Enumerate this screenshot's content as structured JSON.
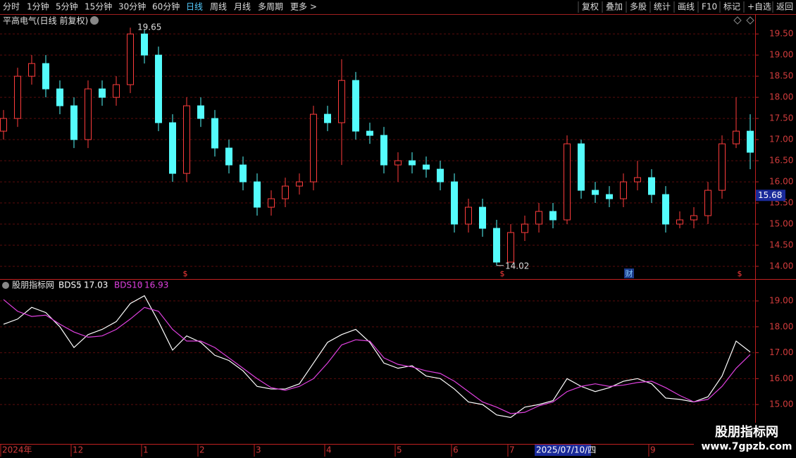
{
  "toolbar": {
    "left": [
      "分时",
      "1分钟",
      "5分钟",
      "15分钟",
      "30分钟",
      "60分钟",
      "日线",
      "周线",
      "月线",
      "多周期",
      "更多 >"
    ],
    "active": "日线",
    "right": [
      "复权",
      "叠加",
      "多股",
      "统计",
      "画线",
      "F10",
      "标记",
      "+自选",
      "返回"
    ]
  },
  "watermark": {
    "title": "股朋指标网",
    "url": "www.7gpzb.com"
  },
  "chart_data": [
    {
      "type": "candlestick",
      "title": "平高电气(日线 前复权)",
      "categories": [
        "2024年",
        null,
        null,
        null,
        null,
        "12",
        null,
        null,
        null,
        null,
        "1",
        null,
        null,
        null,
        "2",
        null,
        null,
        null,
        "3",
        null,
        null,
        null,
        null,
        "4",
        null,
        null,
        null,
        null,
        "5",
        null,
        null,
        null,
        "6",
        null,
        null,
        null,
        "7",
        null,
        null,
        null,
        null,
        null,
        null,
        null,
        null,
        null,
        "9",
        null,
        null,
        null,
        null,
        null,
        null,
        null
      ],
      "open": [
        17.2,
        17.5,
        18.5,
        18.8,
        18.2,
        17.8,
        17.0,
        18.2,
        18.0,
        18.3,
        19.5,
        19.0,
        17.4,
        16.2,
        17.8,
        17.5,
        16.8,
        16.4,
        16.0,
        15.4,
        15.6,
        15.9,
        16.0,
        17.6,
        17.4,
        18.4,
        17.2,
        17.1,
        16.4,
        16.5,
        16.4,
        16.3,
        16.0,
        15.0,
        15.4,
        14.9,
        14.1,
        14.8,
        15.0,
        15.3,
        15.1,
        16.9,
        15.8,
        15.7,
        15.6,
        16.0,
        16.1,
        15.7,
        15.0,
        15.1,
        15.2,
        15.8,
        16.9,
        17.2
      ],
      "close": [
        17.5,
        18.5,
        18.8,
        18.2,
        17.8,
        17.0,
        18.2,
        18.0,
        18.3,
        19.5,
        19.0,
        17.4,
        16.2,
        17.8,
        17.5,
        16.8,
        16.4,
        16.0,
        15.4,
        15.6,
        15.9,
        16.0,
        17.6,
        17.4,
        18.4,
        17.2,
        17.1,
        16.4,
        16.5,
        16.4,
        16.3,
        16.0,
        15.0,
        15.4,
        14.9,
        14.1,
        14.8,
        15.0,
        15.3,
        15.1,
        16.9,
        15.8,
        15.7,
        15.6,
        16.0,
        16.1,
        15.7,
        15.0,
        15.1,
        15.2,
        15.8,
        16.9,
        17.2,
        16.7
      ],
      "high": [
        17.7,
        18.7,
        19.0,
        19.0,
        18.4,
        18.0,
        18.4,
        18.4,
        18.5,
        19.65,
        19.6,
        19.2,
        17.6,
        18.0,
        18.0,
        17.7,
        17.0,
        16.6,
        16.2,
        15.8,
        16.1,
        16.2,
        17.8,
        17.8,
        18.9,
        18.6,
        17.4,
        17.3,
        16.7,
        16.7,
        16.6,
        16.5,
        16.2,
        15.6,
        15.6,
        15.1,
        15.0,
        15.2,
        15.5,
        15.5,
        17.1,
        17.0,
        16.0,
        15.9,
        16.2,
        16.5,
        16.3,
        15.9,
        15.3,
        15.4,
        16.0,
        17.1,
        18.0,
        17.6
      ],
      "low": [
        17.0,
        17.3,
        18.3,
        18.0,
        17.6,
        16.8,
        16.8,
        17.8,
        17.8,
        18.1,
        18.8,
        17.2,
        16.0,
        16.0,
        17.3,
        16.6,
        16.2,
        15.8,
        15.2,
        15.2,
        15.4,
        15.7,
        15.8,
        17.2,
        16.4,
        17.0,
        16.9,
        16.2,
        16.0,
        16.2,
        16.1,
        15.8,
        14.8,
        14.8,
        14.7,
        14.02,
        14.1,
        14.6,
        14.8,
        14.9,
        15.0,
        15.6,
        15.5,
        15.4,
        15.4,
        15.8,
        15.5,
        14.8,
        14.9,
        14.9,
        15.0,
        15.6,
        16.8,
        16.3
      ],
      "up_color": "#ff3c3c",
      "down_color": "#54fcfc",
      "ylim": [
        13.7,
        19.97
      ],
      "yticks": [
        {
          "value": 14,
          "label": "14.00"
        },
        {
          "value": 14.5,
          "label": "14.50"
        },
        {
          "value": 15,
          "label": "15.00"
        },
        {
          "value": 15.5,
          "label": "15.50"
        },
        {
          "value": 16,
          "label": "16.00"
        },
        {
          "value": 16.5,
          "label": "16.50"
        },
        {
          "value": 17,
          "label": "17.00"
        },
        {
          "value": 17.5,
          "label": "17.50"
        },
        {
          "value": 18,
          "label": "18.00"
        },
        {
          "value": 18.5,
          "label": "18.50"
        },
        {
          "value": 19,
          "label": "19.00"
        },
        {
          "value": 19.5,
          "label": "19.50"
        }
      ],
      "grid": true,
      "cursor_price": 15.68,
      "cursor_date": "2025/07/10/四",
      "event_markers": [
        "$",
        "$",
        "财",
        "$"
      ]
    },
    {
      "type": "line",
      "title": "股朋指标网",
      "label_separator": ":",
      "series": [
        {
          "name": "BDS5",
          "color": "#ffffff",
          "values": [
            18.1,
            18.3,
            18.75,
            18.55,
            18.0,
            17.2,
            17.7,
            17.9,
            18.2,
            18.9,
            19.2,
            18.2,
            17.1,
            17.65,
            17.4,
            16.9,
            16.7,
            16.3,
            15.7,
            15.6,
            15.6,
            15.8,
            16.6,
            17.4,
            17.7,
            17.9,
            17.4,
            16.6,
            16.4,
            16.5,
            16.1,
            16.0,
            15.6,
            15.1,
            15.0,
            14.6,
            14.5,
            14.9,
            15.0,
            15.15,
            16.0,
            15.7,
            15.5,
            15.65,
            15.9,
            16.0,
            15.8,
            15.25,
            15.2,
            15.1,
            15.3,
            16.1,
            17.45,
            17.03
          ]
        },
        {
          "name": "BDS10",
          "color": "#e040e0",
          "values": [
            19.05,
            18.6,
            18.4,
            18.45,
            18.1,
            17.8,
            17.6,
            17.65,
            17.9,
            18.3,
            18.75,
            18.6,
            17.9,
            17.45,
            17.45,
            17.2,
            16.8,
            16.4,
            16.0,
            15.65,
            15.55,
            15.7,
            16.0,
            16.6,
            17.3,
            17.5,
            17.45,
            16.8,
            16.55,
            16.45,
            16.3,
            16.2,
            15.9,
            15.5,
            15.1,
            14.9,
            14.65,
            14.7,
            14.95,
            15.1,
            15.5,
            15.7,
            15.8,
            15.7,
            15.75,
            15.85,
            15.9,
            15.65,
            15.35,
            15.1,
            15.2,
            15.7,
            16.4,
            16.93
          ]
        }
      ],
      "ylim": [
        13.48,
        19.79
      ],
      "yticks": [
        {
          "value": 15,
          "label": "15.00"
        },
        {
          "value": 16,
          "label": "16.00"
        },
        {
          "value": 17,
          "label": "17.00"
        },
        {
          "value": 18,
          "label": "18.00"
        },
        {
          "value": 19,
          "label": "19.00"
        }
      ],
      "grid": true
    }
  ]
}
